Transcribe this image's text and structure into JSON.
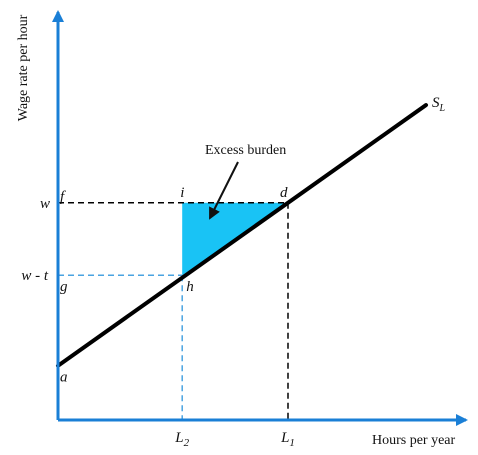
{
  "chart_data": {
    "type": "line",
    "xlabel": "Hours per year",
    "ylabel": "Wage rate per hour",
    "xlim": [
      0,
      10
    ],
    "ylim": [
      0,
      10
    ],
    "grid": false,
    "colors": {
      "axis": "#1a7fd6",
      "supply_line": "#000000",
      "guide_black": "#000000",
      "guide_blue": "#4aa3e0",
      "excess_fill": "#19c3f5"
    },
    "supply_curve": {
      "label_main": "S",
      "label_sub": "L",
      "x": [
        0,
        8.0
      ],
      "y": [
        1.5,
        8.7
      ]
    },
    "levels": {
      "w": {
        "label": "w",
        "value": 6.0
      },
      "w_minus_t": {
        "label": "w - t",
        "value": 4.0
      }
    },
    "quantities": {
      "L2": {
        "main": "L",
        "sub": "2",
        "value": 2.7
      },
      "L1": {
        "main": "L",
        "sub": "1",
        "value": 5.0
      }
    },
    "points": [
      {
        "id": "a",
        "label": "a",
        "x": 0.0,
        "y": 1.5
      },
      {
        "id": "f",
        "label": "f",
        "x": 0.0,
        "y": 6.0
      },
      {
        "id": "g",
        "label": "g",
        "x": 0.0,
        "y": 4.0
      },
      {
        "id": "i",
        "label": "i",
        "x": 2.7,
        "y": 6.0
      },
      {
        "id": "d",
        "label": "d",
        "x": 5.0,
        "y": 6.0
      },
      {
        "id": "h",
        "label": "h",
        "x": 2.7,
        "y": 4.0
      }
    ],
    "annotation": {
      "text": "Excess burden"
    }
  }
}
